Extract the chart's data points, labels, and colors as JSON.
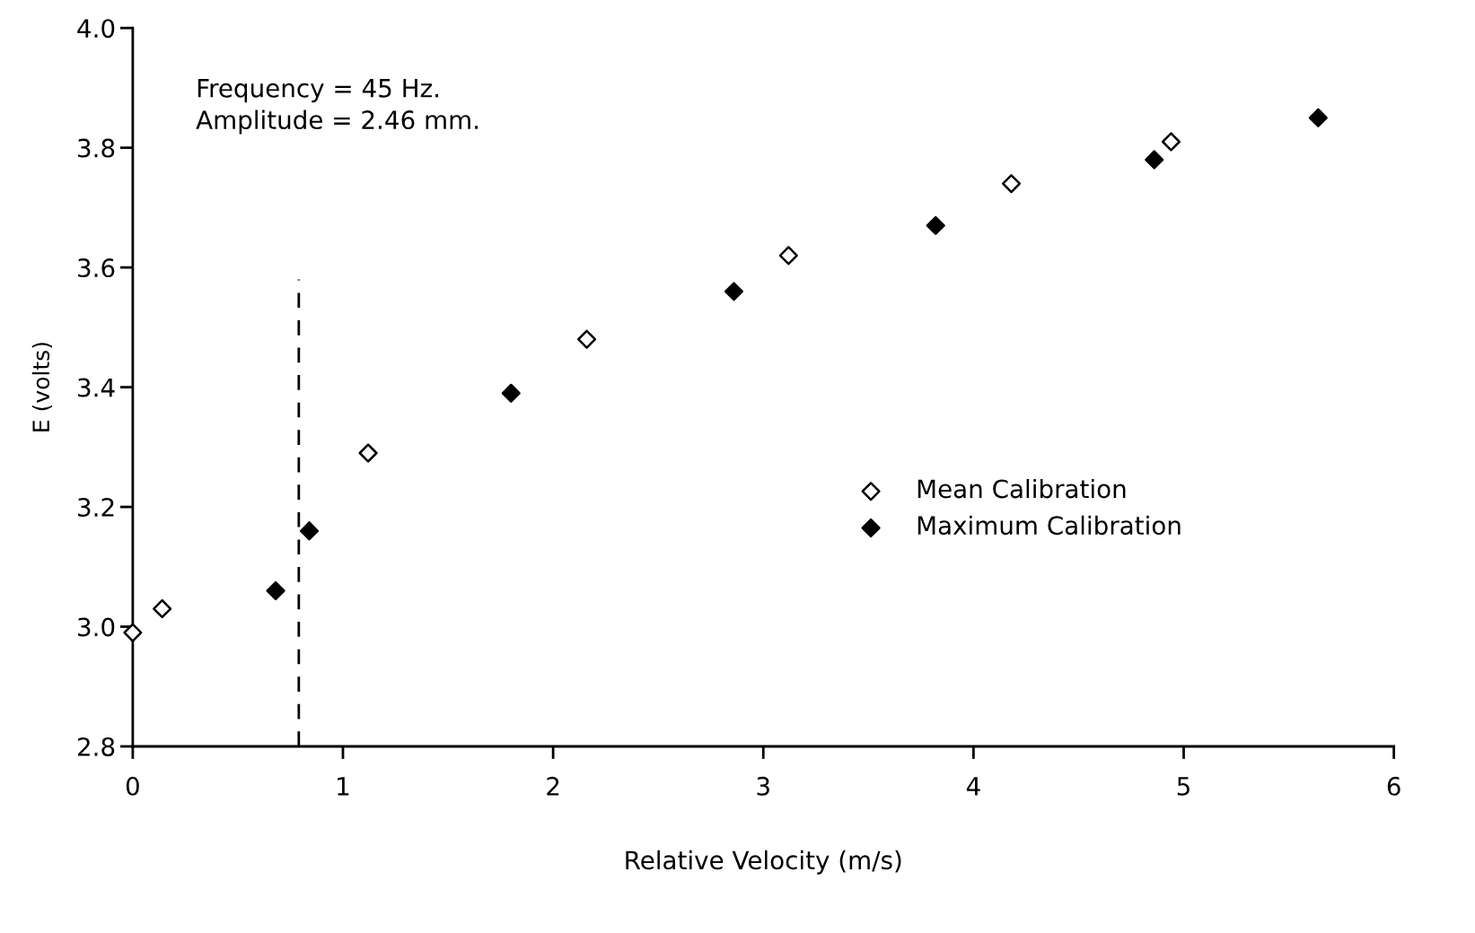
{
  "chart_data": {
    "type": "scatter",
    "xlabel": "Relative Velocity (m/s)",
    "ylabel": "E (volts)",
    "annotations": [
      "Frequency = 45 Hz.\nAmplitude = 2.46 mm."
    ],
    "series": [
      {
        "name": "Mean Calibration",
        "color": "#ffffff",
        "x": [
          0.0,
          0.14,
          1.12,
          2.16,
          3.12,
          4.18,
          4.94
        ],
        "values": [
          2.99,
          3.03,
          3.29,
          3.48,
          3.62,
          3.74,
          3.81
        ]
      },
      {
        "name": "Maximum Calibration",
        "color": "#000000",
        "x": [
          0.68,
          0.84,
          1.8,
          2.86,
          3.82,
          4.86,
          5.64
        ],
        "values": [
          3.06,
          3.16,
          3.39,
          3.56,
          3.67,
          3.78,
          3.85
        ]
      }
    ],
    "ref_lines": [
      {
        "axis": "x",
        "value": 0.79,
        "label": null,
        "color": "#000000",
        "line_style": "dashed"
      }
    ],
    "xlim": [
      0,
      6
    ],
    "ylim": [
      2.8,
      4.0
    ],
    "xticks": [
      0,
      1,
      2,
      3,
      4,
      5,
      6
    ],
    "yticks": [
      {
        "value": 2.8,
        "label": "2.8"
      },
      {
        "value": 3.0,
        "label": "3.0"
      },
      {
        "value": 3.2,
        "label": "3.2"
      },
      {
        "value": 3.4,
        "label": "3.4"
      },
      {
        "value": 3.6,
        "label": "3.6"
      },
      {
        "value": 3.8,
        "label": "3.8"
      },
      {
        "value": 4.0,
        "label": "4.0"
      }
    ],
    "marker": "diamond",
    "grid": false,
    "legend": "center right"
  }
}
